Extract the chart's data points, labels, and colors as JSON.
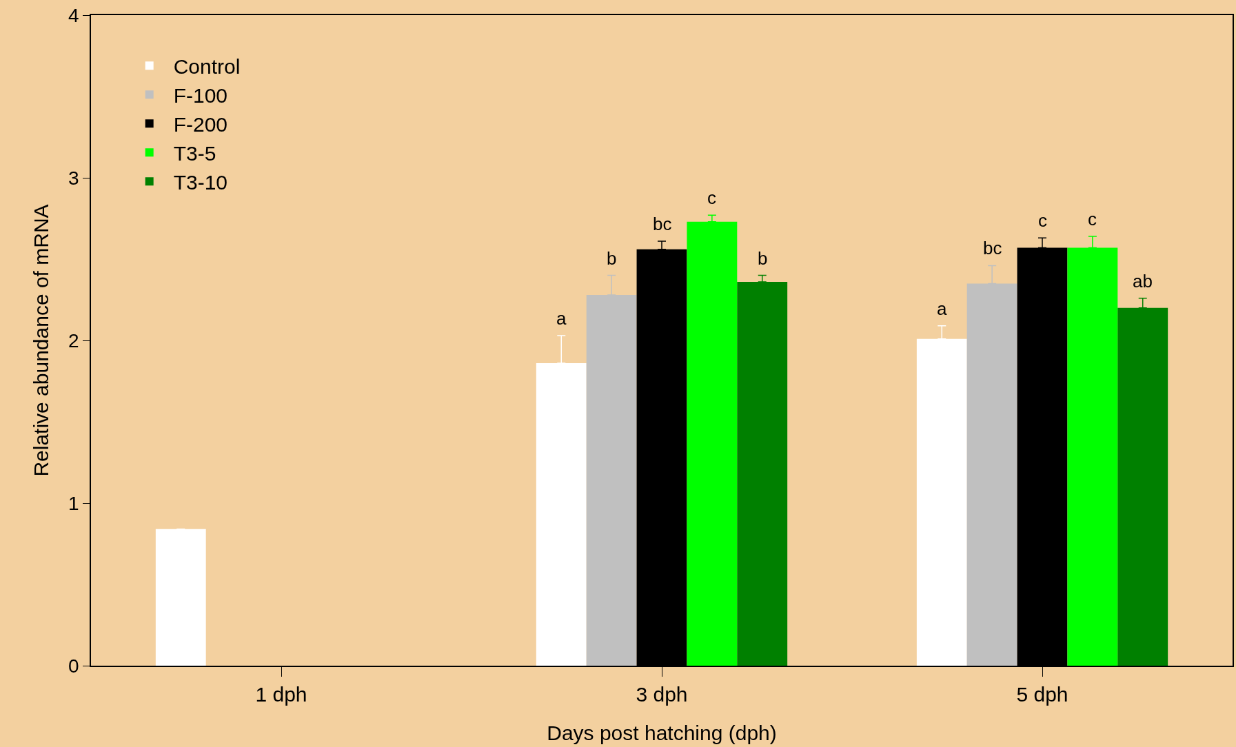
{
  "chart_data": {
    "type": "bar",
    "xlabel": "Days post hatching (dph)",
    "ylabel": "Relative abundance of mRNA",
    "categories": [
      "1 dph",
      "3 dph",
      "5 dph"
    ],
    "series": [
      {
        "name": "Control",
        "color": "#ffffff",
        "values": [
          0.84,
          1.86,
          2.01
        ],
        "errors": [
          null,
          [
            1.86,
            2.03
          ],
          [
            2.01,
            2.09
          ]
        ],
        "value_labels": [
          null,
          "a",
          "a"
        ]
      },
      {
        "name": "F-100",
        "color": "#c0c0c0",
        "values": [
          null,
          2.28,
          2.35
        ],
        "errors": [
          null,
          [
            2.28,
            2.4
          ],
          [
            2.35,
            2.46
          ]
        ],
        "value_labels": [
          null,
          "b",
          "bc"
        ]
      },
      {
        "name": "F-200",
        "color": "#000000",
        "values": [
          null,
          2.56,
          2.57
        ],
        "errors": [
          null,
          [
            2.56,
            2.61
          ],
          [
            2.57,
            2.63
          ]
        ],
        "value_labels": [
          null,
          "bc",
          "c"
        ]
      },
      {
        "name": "T3-5",
        "color": "#00ff00",
        "values": [
          null,
          2.73,
          2.57
        ],
        "errors": [
          null,
          [
            2.73,
            2.77
          ],
          [
            2.57,
            2.64
          ]
        ],
        "value_labels": [
          null,
          "c",
          "c"
        ]
      },
      {
        "name": "T3-10",
        "color": "#008000",
        "values": [
          null,
          2.36,
          2.2
        ],
        "errors": [
          null,
          [
            2.36,
            2.4
          ],
          [
            2.2,
            2.26
          ]
        ],
        "value_labels": [
          null,
          "b",
          "ab"
        ]
      }
    ],
    "ylim": [
      0,
      4
    ],
    "yticks": [
      0,
      1,
      2,
      3,
      4
    ],
    "grid": false,
    "legend": "top left"
  }
}
